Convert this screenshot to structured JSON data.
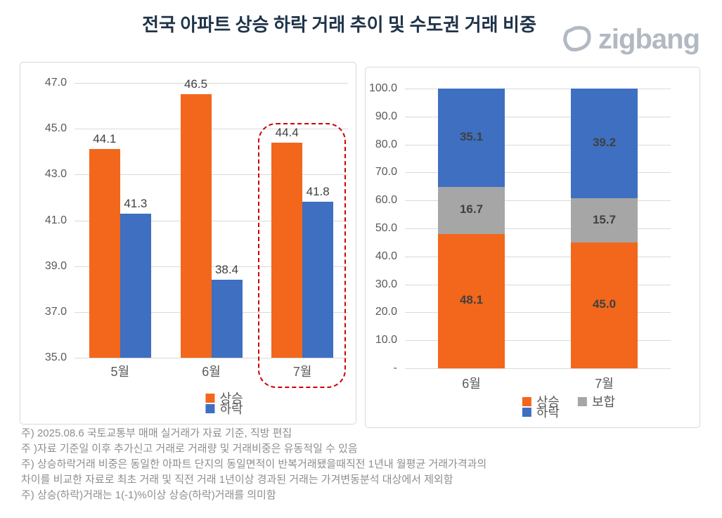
{
  "title": "전국 아파트 상승 하락 거래 추이 및 수도권 거래 비중",
  "logo": {
    "text": "zigbang"
  },
  "colors": {
    "rise": "#F2671C",
    "fall": "#3E6FC1",
    "flat": "#A6A6A6",
    "highlight": "#CC0000",
    "grid": "#D9D9D9",
    "title_text": "#1F3349",
    "logo_gray": "#B2B9C2"
  },
  "chart_data": [
    {
      "type": "bar",
      "stacked": false,
      "name": "전국 아파트 상승·하락 거래 추이",
      "categories": [
        "5월",
        "6월",
        "7월"
      ],
      "series": [
        {
          "key": "rise",
          "name": "상승",
          "color": "#F2671C",
          "values": [
            44.1,
            46.5,
            44.4
          ]
        },
        {
          "key": "fall",
          "name": "하락",
          "color": "#3E6FC1",
          "values": [
            41.3,
            38.4,
            41.8
          ]
        }
      ],
      "ylim": [
        35.0,
        47.0
      ],
      "yticks": [
        "47.0",
        "45.0",
        "43.0",
        "41.0",
        "39.0",
        "37.0",
        "35.0"
      ],
      "grid": true,
      "legend_position": "bottom",
      "highlight_category": "7월"
    },
    {
      "type": "bar",
      "stacked": true,
      "name": "수도권 거래 비중",
      "categories": [
        "6월",
        "7월"
      ],
      "series": [
        {
          "key": "rise",
          "name": "상승",
          "color": "#F2671C",
          "values": [
            48.1,
            45.0
          ]
        },
        {
          "key": "flat",
          "name": "보합",
          "color": "#A6A6A6",
          "values": [
            16.7,
            15.7
          ]
        },
        {
          "key": "fall",
          "name": "하락",
          "color": "#3E6FC1",
          "values": [
            35.1,
            39.2
          ]
        }
      ],
      "ylim": [
        0,
        100
      ],
      "yticks": [
        "100.0",
        "90.0",
        "80.0",
        "70.0",
        "60.0",
        "50.0",
        "40.0",
        "30.0",
        "20.0",
        "10.0",
        "-"
      ],
      "grid": true,
      "legend_position": "bottom"
    }
  ],
  "footnotes": [
    "주) 2025.08.6 국토교통부 매매 실거래가 자료 기준, 직방 편집",
    "주 )자료 기준일 이후 추가신고 거래로 거래량 및 거래비중은 유동적일 수 있음",
    "주) 상승하락거래 비중은 동일한 아파트 단지의 동일면적이 반복거래됐을때직전 1년내 월평균 거래가격과의",
    "차이를 비교한 자료로 최초 거래 및 직전 거래 1년이상 경과된 거래는 가겨변동분석 대상에서 제외함",
    "주) 상승(하락)거래는 1(-1)%이상 상승(하락)거래를 의미함"
  ]
}
